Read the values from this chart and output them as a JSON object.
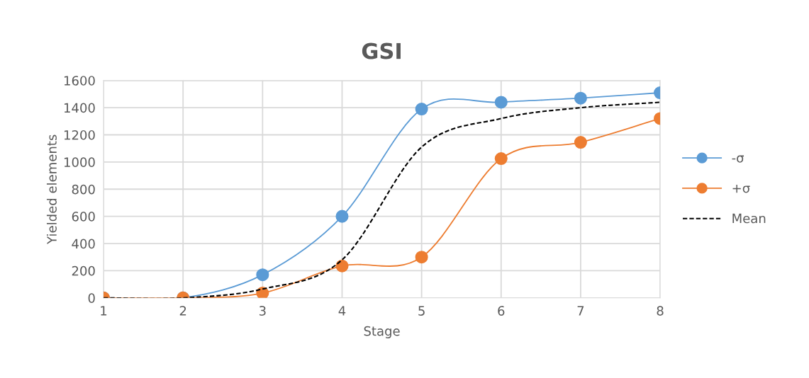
{
  "chart_data": {
    "type": "line",
    "title": "GSI",
    "xlabel": "Stage",
    "ylabel": "Yielded elements",
    "x": [
      1,
      2,
      3,
      4,
      5,
      6,
      7,
      8
    ],
    "series": [
      {
        "name": "-σ",
        "color": "#5b9bd5",
        "marker": "circle",
        "line_style": "solid",
        "values": [
          0,
          0,
          170,
          600,
          1390,
          1440,
          1470,
          1510
        ]
      },
      {
        "name": "+σ",
        "color": "#ed7d31",
        "marker": "circle",
        "line_style": "solid",
        "values": [
          0,
          0,
          35,
          235,
          300,
          1025,
          1145,
          1320
        ]
      },
      {
        "name": "Mean",
        "color": "#000000",
        "marker": "none",
        "line_style": "dashed",
        "values": [
          0,
          0,
          65,
          280,
          1110,
          1320,
          1400,
          1440
        ]
      }
    ],
    "xlim": [
      1,
      8
    ],
    "xticks": [
      1,
      2,
      3,
      4,
      5,
      6,
      7,
      8
    ],
    "ylim": [
      0,
      1600
    ],
    "yticks": [
      0,
      200,
      400,
      600,
      800,
      1000,
      1200,
      1400,
      1600
    ],
    "grid": true,
    "legend": "right"
  }
}
